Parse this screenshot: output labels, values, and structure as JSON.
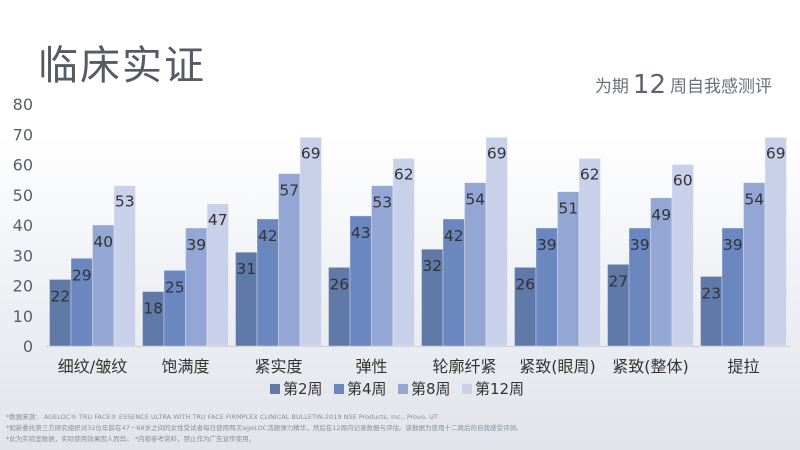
{
  "title": "临床实证",
  "subtitle": {
    "pre": "为期",
    "number": "12",
    "post": "周自我感测评"
  },
  "chart_data": {
    "type": "bar",
    "categories": [
      "细纹/皱纹",
      "饱满度",
      "紧实度",
      "弹性",
      "轮廓纤紧",
      "紧致(眼周)",
      "紧致(整体)",
      "提拉"
    ],
    "series": [
      {
        "name": "第2周",
        "color": "#5f79a8",
        "values": [
          22,
          18,
          31,
          26,
          32,
          26,
          27,
          23
        ]
      },
      {
        "name": "第4周",
        "color": "#6b87c0",
        "values": [
          29,
          25,
          42,
          43,
          42,
          39,
          39,
          39
        ]
      },
      {
        "name": "第8周",
        "color": "#94a6d4",
        "values": [
          40,
          39,
          57,
          53,
          54,
          51,
          49,
          54
        ]
      },
      {
        "name": "第12周",
        "color": "#c9d1ea",
        "values": [
          53,
          47,
          69,
          62,
          69,
          62,
          60,
          69
        ]
      }
    ],
    "ylim": [
      0,
      80
    ],
    "yticks": [
      0,
      10,
      20,
      30,
      40,
      50,
      60,
      70,
      80
    ],
    "grid": false,
    "legend": "bottom",
    "data_labels": true
  },
  "footnotes": [
    "*数据来源： AGELOC® TRU FACE® ESSENCE ULTRA WITH TRU FACE FIRMPLEX CLINICAL BULLETIN-2019 NSE Products, Inc., Provo, UT",
    "*如新委托第三方研究组织对32位年龄在47－68岁之间的女性受试者每日使用两次ageLOC活颜弹力精华，然后在12周内记录数据与评估。该数据为使用十二周后的自我感受评测。",
    "*此为实验室数据，实际使用效果因人而异。  *内部参考资料，禁止作为广告宣传使用。"
  ]
}
